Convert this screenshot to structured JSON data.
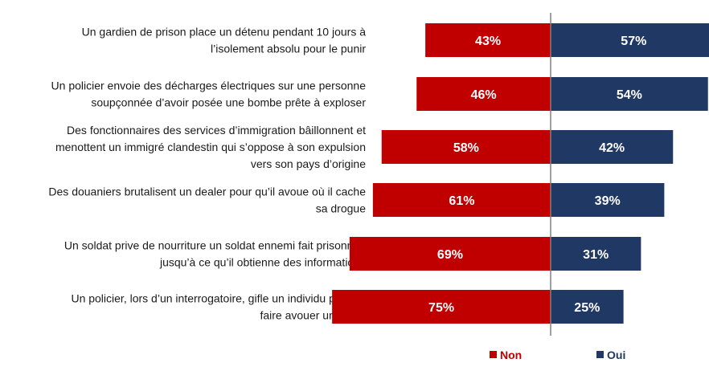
{
  "chart_data": {
    "type": "bar",
    "orientation": "horizontal-diverging",
    "title": "",
    "xlabel": "",
    "ylabel": "",
    "categories": [
      [
        "Un gardien de prison place un détenu pendant 10 jours à",
        "l’isolement absolu pour le punir"
      ],
      [
        "Un policier envoie des décharges électriques sur une personne",
        "soupçonnée d’avoir posée une bombe prête à exploser"
      ],
      [
        "Des fonctionnaires des services d’immigration bâillonnent et",
        "menottent un immigré clandestin qui s’oppose à son expulsion",
        "vers son pays d’origine"
      ],
      [
        "Des douaniers brutalisent un dealer pour qu’il avoue où il cache",
        "sa drogue"
      ],
      [
        "Un soldat prive de nourriture un soldat ennemi fait prisonnier",
        "jusqu’à ce qu’il obtienne des informations"
      ],
      [
        "Un policier, lors d’un interrogatoire, gifle un individu pour lui",
        "faire avouer un crime"
      ]
    ],
    "series": [
      {
        "name": "Non",
        "color": "#c00000",
        "values": [
          43,
          46,
          58,
          61,
          69,
          75
        ],
        "labels": [
          "43%",
          "46%",
          "58%",
          "61%",
          "69%",
          "75%"
        ]
      },
      {
        "name": "Oui",
        "color": "#1f3864",
        "values": [
          57,
          54,
          42,
          39,
          31,
          25
        ],
        "labels": [
          "57%",
          "54%",
          "42%",
          "39%",
          "31%",
          "25%"
        ]
      }
    ],
    "xlim": [
      0,
      100
    ],
    "grid": false,
    "legend_position": "bottom-right",
    "axis_line_color": "#808080"
  }
}
